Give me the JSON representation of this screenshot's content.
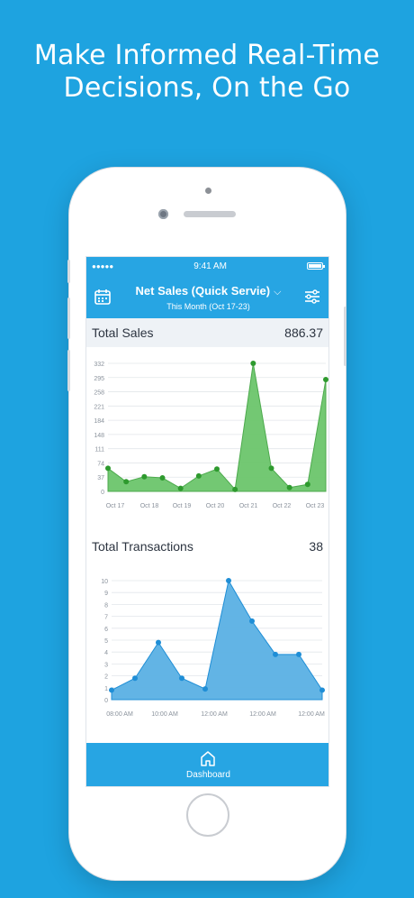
{
  "headline": {
    "line1": "Make Informed Real-Time",
    "line2": "Decisions, On the Go"
  },
  "status_bar": {
    "time": "9:41 AM",
    "signal": "●●●●●",
    "battery_level": 1.0
  },
  "nav": {
    "title": "Net Sales (Quick Servie)",
    "subtitle": "This Month (Oct 17-23)",
    "left_icon": "calendar-icon",
    "right_icon": "filter-sliders-icon",
    "title_icon": "chevron-down-icon"
  },
  "sales": {
    "label": "Total Sales",
    "value": "886.37"
  },
  "transactions": {
    "label": "Total Transactions",
    "value": "38"
  },
  "tab_bar": {
    "label": "Dashboard",
    "icon": "home-icon"
  },
  "colors": {
    "background": "#1ea3e0",
    "brand": "#27a5e3",
    "sales_fill": "#6cc56c",
    "sales_point": "#2e9a2e",
    "tx_fill": "#5ab0e4",
    "tx_point": "#1f8ed6"
  },
  "chart_data": [
    {
      "type": "area",
      "title": "Total Sales",
      "y_ticks": [
        "0",
        "37",
        "74",
        "111",
        "148",
        "184",
        "221",
        "258",
        "295",
        "332"
      ],
      "ylim": [
        0,
        332
      ],
      "x_tick_labels": [
        "Oct 17",
        "Oct 18",
        "Oct 19",
        "Oct 20",
        "Oct 21",
        "Oct 22",
        "Oct 23"
      ],
      "values": [
        60,
        25,
        38,
        35,
        8,
        40,
        58,
        5,
        332,
        60,
        10,
        18,
        290
      ],
      "grid": true
    },
    {
      "type": "area",
      "title": "Total Transactions",
      "y_ticks": [
        "0",
        "1",
        "2",
        "3",
        "4",
        "5",
        "6",
        "7",
        "8",
        "9",
        "10"
      ],
      "ylim": [
        0,
        10
      ],
      "x_tick_labels": [
        "08:00 AM",
        "10:00 AM",
        "12:00 AM",
        "12:00 AM",
        "12:00 AM"
      ],
      "values": [
        0.8,
        1.8,
        4.8,
        1.8,
        0.9,
        10,
        6.6,
        3.8,
        3.8,
        0.8
      ],
      "grid": true
    }
  ]
}
